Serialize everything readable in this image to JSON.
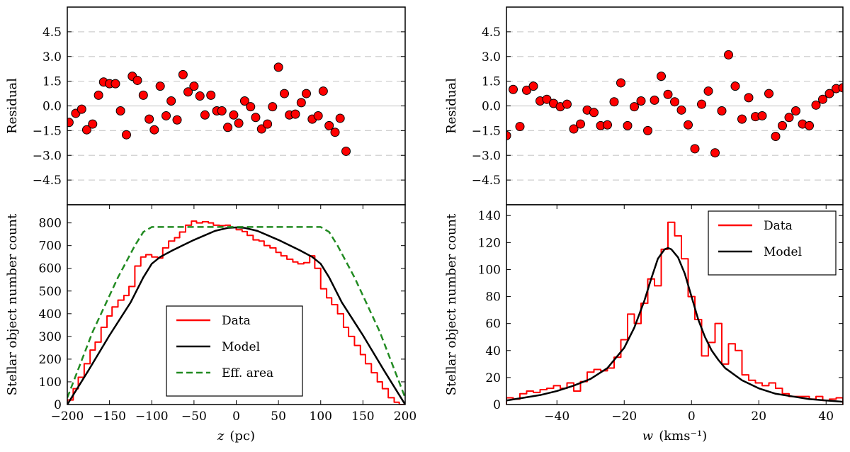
{
  "chart_data": [
    {
      "id": "z-residual",
      "type": "scatter",
      "ylabel": "Residual",
      "xlim": [
        -200,
        200
      ],
      "ylim": [
        -6,
        6
      ],
      "yticks": [
        "4.5",
        "3.0",
        "1.5",
        "0.0",
        "−1.5",
        "−3.0",
        "−4.5"
      ],
      "ytick_values": [
        4.5,
        3.0,
        1.5,
        0.0,
        -1.5,
        -3.0,
        -4.5
      ],
      "grid": "dashed horizontal",
      "marker_color": "#ff0000",
      "points": [
        [
          -198,
          -1.0
        ],
        [
          -190,
          -0.45
        ],
        [
          -183,
          -0.2
        ],
        [
          -177,
          -1.45
        ],
        [
          -170,
          -1.1
        ],
        [
          -163,
          0.65
        ],
        [
          -157,
          1.45
        ],
        [
          -150,
          1.35
        ],
        [
          -143,
          1.35
        ],
        [
          -137,
          -0.3
        ],
        [
          -130,
          -1.75
        ],
        [
          -123,
          1.8
        ],
        [
          -117,
          1.55
        ],
        [
          -110,
          0.65
        ],
        [
          -103,
          -0.8
        ],
        [
          -97,
          -1.45
        ],
        [
          -90,
          1.2
        ],
        [
          -83,
          -0.6
        ],
        [
          -77,
          0.3
        ],
        [
          -70,
          -0.85
        ],
        [
          -63,
          1.9
        ],
        [
          -57,
          0.85
        ],
        [
          -50,
          1.2
        ],
        [
          -43,
          0.6
        ],
        [
          -37,
          -0.55
        ],
        [
          -30,
          0.65
        ],
        [
          -23,
          -0.3
        ],
        [
          -17,
          -0.3
        ],
        [
          -10,
          -1.3
        ],
        [
          -3,
          -0.55
        ],
        [
          3,
          -1.05
        ],
        [
          10,
          0.3
        ],
        [
          17,
          -0.05
        ],
        [
          23,
          -0.7
        ],
        [
          30,
          -1.4
        ],
        [
          37,
          -1.1
        ],
        [
          43,
          -0.05
        ],
        [
          50,
          2.35
        ],
        [
          57,
          0.75
        ],
        [
          63,
          -0.55
        ],
        [
          70,
          -0.5
        ],
        [
          77,
          0.2
        ],
        [
          83,
          0.75
        ],
        [
          90,
          -0.8
        ],
        [
          97,
          -0.6
        ],
        [
          103,
          0.9
        ],
        [
          110,
          -1.2
        ],
        [
          117,
          -1.6
        ],
        [
          123,
          -0.75
        ],
        [
          130,
          -2.75
        ]
      ]
    },
    {
      "id": "z-count",
      "type": "line",
      "xlabel": "z",
      "xlabel_unit": "(pc)",
      "ylabel": "Stellar object number count",
      "xlim": [
        -200,
        200
      ],
      "ylim": [
        0,
        880
      ],
      "xticks": [
        "−200",
        "−150",
        "−100",
        "−50",
        "0",
        "50",
        "100",
        "150",
        "200"
      ],
      "xtick_values": [
        -200,
        -150,
        -100,
        -50,
        0,
        50,
        100,
        150,
        200
      ],
      "yticks": [
        "0",
        "100",
        "200",
        "300",
        "400",
        "500",
        "600",
        "700",
        "800"
      ],
      "ytick_values": [
        0,
        100,
        200,
        300,
        400,
        500,
        600,
        700,
        800
      ],
      "legend": [
        "Data",
        "Model",
        "Eff. area"
      ],
      "legend_position": "lower-right",
      "series": [
        {
          "name": "Data",
          "style": "step",
          "color": "#ff0000",
          "bin_edges": [
            -200,
            -193,
            -187,
            -180,
            -173,
            -167,
            -160,
            -153,
            -147,
            -140,
            -133,
            -127,
            -120,
            -113,
            -107,
            -100,
            -93,
            -87,
            -80,
            -73,
            -67,
            -60,
            -53,
            -47,
            -40,
            -33,
            -27,
            -20,
            -13,
            -7,
            0,
            7,
            13,
            20,
            27,
            33,
            40,
            47,
            53,
            60,
            67,
            73,
            80,
            87,
            93,
            100,
            107,
            113,
            120,
            127,
            133,
            140,
            147,
            153,
            160,
            167,
            173,
            180,
            187,
            193,
            200
          ],
          "values": [
            20,
            70,
            120,
            180,
            240,
            275,
            340,
            390,
            430,
            460,
            480,
            520,
            610,
            650,
            660,
            650,
            645,
            690,
            720,
            735,
            760,
            790,
            808,
            800,
            805,
            800,
            790,
            788,
            790,
            780,
            770,
            762,
            745,
            725,
            720,
            700,
            690,
            670,
            655,
            640,
            628,
            620,
            625,
            655,
            600,
            510,
            470,
            440,
            400,
            340,
            300,
            260,
            220,
            180,
            140,
            100,
            70,
            30,
            10,
            0
          ]
        },
        {
          "name": "Model",
          "style": "line",
          "color": "#000000",
          "x": [
            -200,
            -175,
            -150,
            -125,
            -110,
            -100,
            -90,
            -75,
            -50,
            -25,
            -10,
            0,
            10,
            25,
            50,
            75,
            90,
            100,
            110,
            125,
            150,
            175,
            200
          ],
          "y": [
            0,
            150,
            305,
            450,
            560,
            620,
            650,
            680,
            725,
            765,
            778,
            780,
            778,
            765,
            725,
            680,
            650,
            620,
            560,
            450,
            305,
            150,
            0
          ]
        },
        {
          "name": "Eff. area",
          "style": "dashed",
          "color": "#228b22",
          "x": [
            -200,
            -170,
            -140,
            -120,
            -110,
            -100,
            -95,
            95,
            100,
            110,
            120,
            140,
            170,
            200
          ],
          "y": [
            30,
            320,
            560,
            700,
            760,
            782,
            782,
            782,
            782,
            760,
            700,
            560,
            320,
            30
          ]
        }
      ]
    },
    {
      "id": "w-residual",
      "type": "scatter",
      "ylabel": "Residual",
      "xlim": [
        -55,
        45
      ],
      "ylim": [
        -6,
        6
      ],
      "yticks": [
        "4.5",
        "3.0",
        "1.5",
        "0.0",
        "−1.5",
        "−3.0",
        "−4.5"
      ],
      "ytick_values": [
        4.5,
        3.0,
        1.5,
        0.0,
        -1.5,
        -3.0,
        -4.5
      ],
      "grid": "dashed horizontal",
      "marker_color": "#ff0000",
      "points": [
        [
          -55,
          -1.8
        ],
        [
          -53,
          1.0
        ],
        [
          -51,
          -1.25
        ],
        [
          -49,
          0.95
        ],
        [
          -47,
          1.2
        ],
        [
          -45,
          0.3
        ],
        [
          -43,
          0.4
        ],
        [
          -41,
          0.15
        ],
        [
          -39,
          -0.05
        ],
        [
          -37,
          0.1
        ],
        [
          -35,
          -1.4
        ],
        [
          -33,
          -1.1
        ],
        [
          -31,
          -0.25
        ],
        [
          -29,
          -0.4
        ],
        [
          -27,
          -1.2
        ],
        [
          -25,
          -1.15
        ],
        [
          -23,
          0.25
        ],
        [
          -21,
          1.4
        ],
        [
          -19,
          -1.2
        ],
        [
          -17,
          -0.05
        ],
        [
          -15,
          0.3
        ],
        [
          -13,
          -1.5
        ],
        [
          -11,
          0.35
        ],
        [
          -9,
          1.8
        ],
        [
          -7,
          0.7
        ],
        [
          -5,
          0.25
        ],
        [
          -3,
          -0.25
        ],
        [
          -1,
          -1.15
        ],
        [
          1,
          -2.6
        ],
        [
          3,
          0.1
        ],
        [
          5,
          0.9
        ],
        [
          7,
          -2.85
        ],
        [
          9,
          -0.3
        ],
        [
          11,
          3.1
        ],
        [
          13,
          1.2
        ],
        [
          15,
          -0.8
        ],
        [
          17,
          0.5
        ],
        [
          19,
          -0.65
        ],
        [
          21,
          -0.6
        ],
        [
          23,
          0.75
        ],
        [
          25,
          -1.85
        ],
        [
          27,
          -1.2
        ],
        [
          29,
          -0.7
        ],
        [
          31,
          -0.3
        ],
        [
          33,
          -1.1
        ],
        [
          35,
          -1.2
        ],
        [
          37,
          0.05
        ],
        [
          39,
          0.4
        ],
        [
          41,
          0.75
        ],
        [
          43,
          1.05
        ],
        [
          45,
          1.1
        ]
      ]
    },
    {
      "id": "w-count",
      "type": "line",
      "xlabel": "w",
      "xlabel_unit": "(kms⁻¹)",
      "ylabel": "Stellar object number count",
      "xlim": [
        -55,
        45
      ],
      "ylim": [
        0,
        148
      ],
      "xticks": [
        "−40",
        "−20",
        "0",
        "20",
        "40"
      ],
      "xtick_values": [
        -40,
        -20,
        0,
        20,
        40
      ],
      "yticks": [
        "0",
        "20",
        "40",
        "60",
        "80",
        "100",
        "120",
        "140"
      ],
      "ytick_values": [
        0,
        20,
        40,
        60,
        80,
        100,
        120,
        140
      ],
      "legend": [
        "Data",
        "Model"
      ],
      "legend_position": "top-right",
      "series": [
        {
          "name": "Data",
          "style": "step",
          "color": "#ff0000",
          "bin_edges": [
            -55,
            -53,
            -51,
            -49,
            -47,
            -45,
            -43,
            -41,
            -39,
            -37,
            -35,
            -33,
            -31,
            -29,
            -27,
            -25,
            -23,
            -21,
            -19,
            -17,
            -15,
            -13,
            -11,
            -9,
            -7,
            -5,
            -3,
            -1,
            1,
            3,
            5,
            7,
            9,
            11,
            13,
            15,
            17,
            19,
            21,
            23,
            25,
            27,
            29,
            31,
            33,
            35,
            37,
            39,
            41,
            43,
            45
          ],
          "values": [
            5,
            4,
            8,
            10,
            9,
            11,
            12,
            14,
            12,
            16,
            10,
            17,
            24,
            26,
            25,
            27,
            35,
            48,
            67,
            60,
            75,
            93,
            88,
            115,
            135,
            125,
            108,
            80,
            63,
            36,
            46,
            60,
            30,
            45,
            40,
            22,
            18,
            16,
            14,
            16,
            12,
            8,
            6,
            6,
            6,
            4,
            6,
            3,
            4,
            5
          ]
        },
        {
          "name": "Model",
          "style": "line",
          "color": "#000000",
          "x": [
            -55,
            -50,
            -45,
            -40,
            -35,
            -30,
            -25,
            -20,
            -17,
            -14,
            -12,
            -10,
            -8,
            -7,
            -6,
            -4,
            -2,
            0,
            2,
            4,
            6,
            8,
            10,
            15,
            20,
            25,
            30,
            35,
            40,
            45
          ],
          "y": [
            3,
            5,
            7,
            10,
            14,
            19,
            27,
            42,
            57,
            77,
            93,
            108,
            115,
            116,
            115,
            109,
            97,
            80,
            63,
            50,
            40,
            33,
            27,
            18,
            12,
            8,
            6,
            4,
            3,
            2
          ]
        }
      ]
    }
  ]
}
